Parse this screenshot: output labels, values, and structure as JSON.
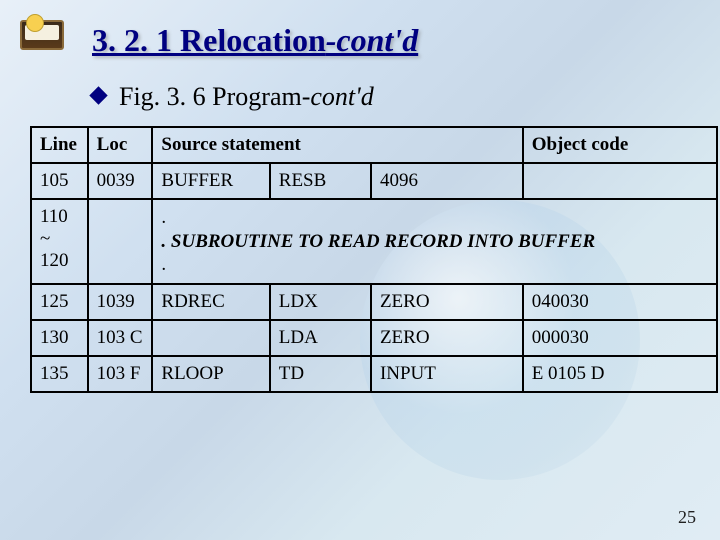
{
  "title": {
    "main": "3. 2. 1 Relocation",
    "contd": "-cont'd"
  },
  "subtitle": {
    "prefix": "Fig. 3. 6 Program",
    "contd": "-cont'd"
  },
  "table": {
    "headers": {
      "line": "Line",
      "loc": "Loc",
      "source": "Source statement",
      "object": "Object code"
    },
    "rows": [
      {
        "line": "105",
        "loc": "0039",
        "label": "BUFFER",
        "op": "RESB",
        "operand": "4096",
        "obj": ""
      },
      {
        "line": "110\n~\n120",
        "loc": "",
        "subroutine": ". SUBROUTINE TO READ RECORD INTO BUFFER"
      },
      {
        "line": "125",
        "loc": "1039",
        "label": "RDREC",
        "op": "LDX",
        "operand": "ZERO",
        "obj": "040030"
      },
      {
        "line": "130",
        "loc": "103 C",
        "label": "",
        "op": "LDA",
        "operand": "ZERO",
        "obj": "000030"
      },
      {
        "line": "135",
        "loc": "103 F",
        "label": "RLOOP",
        "op": "TD",
        "operand": "INPUT",
        "obj": "E 0105 D"
      }
    ]
  },
  "pagenum": "25",
  "colors": {
    "title": "#000080",
    "bullet": "#000080",
    "border": "#000000"
  }
}
